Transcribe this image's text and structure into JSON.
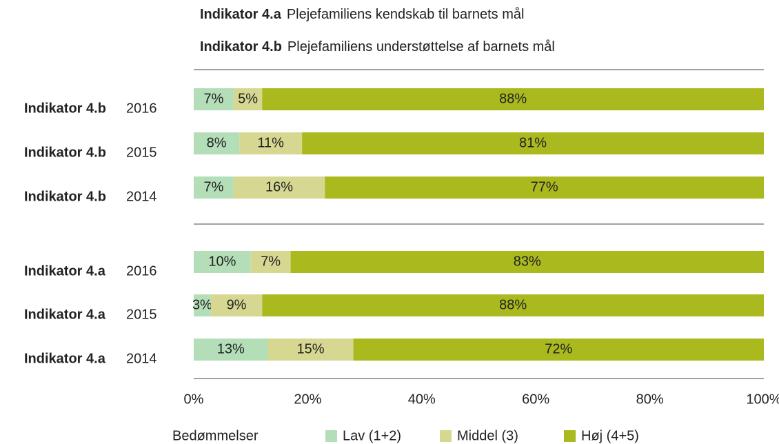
{
  "chart_data": {
    "type": "stacked-barh",
    "indicators": [
      {
        "name": "Indikator 4.a",
        "description": "Plejefamiliens kendskab til barnets mål"
      },
      {
        "name": "Indikator 4.b",
        "description": "Plejefamiliens understøttelse af barnets mål"
      }
    ],
    "categories": [
      {
        "indicator": "Indikator 4.b",
        "year": "2016"
      },
      {
        "indicator": "Indikator 4.b",
        "year": "2015"
      },
      {
        "indicator": "Indikator 4.b",
        "year": "2014"
      },
      {
        "indicator": "Indikator 4.a",
        "year": "2016"
      },
      {
        "indicator": "Indikator 4.a",
        "year": "2015"
      },
      {
        "indicator": "Indikator 4.a",
        "year": "2014"
      }
    ],
    "series": [
      {
        "name": "Lav (1+2)",
        "color": "#b3deb8",
        "values": [
          7,
          8,
          7,
          10,
          3,
          13
        ],
        "value_labels": [
          "7%",
          "8%",
          "7%",
          "10%",
          "3%",
          "13%"
        ]
      },
      {
        "name": "Middel (3)",
        "color": "#d6d891",
        "values": [
          5,
          11,
          16,
          7,
          9,
          15
        ],
        "value_labels": [
          "5%",
          "11%",
          "16%",
          "7%",
          "9%",
          "15%"
        ]
      },
      {
        "name": "Høj (4+5)",
        "color": "#a9b91e",
        "values": [
          88,
          81,
          77,
          83,
          88,
          72
        ],
        "value_labels": [
          "88%",
          "81%",
          "77%",
          "83%",
          "88%",
          "72%"
        ]
      }
    ],
    "xlim": [
      0,
      100
    ],
    "xticks": [
      {
        "value": 0,
        "label": "0%"
      },
      {
        "value": 20,
        "label": "20%"
      },
      {
        "value": 40,
        "label": "40%"
      },
      {
        "value": 60,
        "label": "60%"
      },
      {
        "value": 80,
        "label": "80%"
      },
      {
        "value": 100,
        "label": "100%"
      }
    ],
    "legend_title": "Bedømmelser"
  }
}
